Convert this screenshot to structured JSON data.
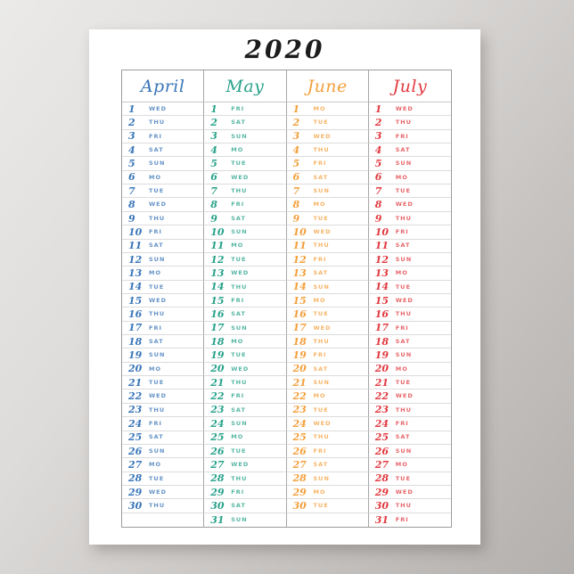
{
  "poster": {
    "title": "2020"
  },
  "colors": {
    "background_start": "#ebeae9",
    "background_end": "#b3b0ae",
    "poster_background": "#ffffff",
    "title_color": "#1c1c1c",
    "table_border": "#9c9c9c",
    "column_line": "#a6a6a6",
    "row_line": "#dcdcdc"
  },
  "calendar": {
    "row_count": 31,
    "columns": [
      {
        "name": "April",
        "color": "#3a76b8",
        "days": [
          {
            "d": "1",
            "w": "WED"
          },
          {
            "d": "2",
            "w": "THU"
          },
          {
            "d": "3",
            "w": "FRI"
          },
          {
            "d": "4",
            "w": "SAT"
          },
          {
            "d": "5",
            "w": "SUN"
          },
          {
            "d": "6",
            "w": "MO"
          },
          {
            "d": "7",
            "w": "TUE"
          },
          {
            "d": "8",
            "w": "WED"
          },
          {
            "d": "9",
            "w": "THU"
          },
          {
            "d": "10",
            "w": "FRI"
          },
          {
            "d": "11",
            "w": "SAT"
          },
          {
            "d": "12",
            "w": "SUN"
          },
          {
            "d": "13",
            "w": "MO"
          },
          {
            "d": "14",
            "w": "TUE"
          },
          {
            "d": "15",
            "w": "WED"
          },
          {
            "d": "16",
            "w": "THU"
          },
          {
            "d": "17",
            "w": "FRI"
          },
          {
            "d": "18",
            "w": "SAT"
          },
          {
            "d": "19",
            "w": "SUN"
          },
          {
            "d": "20",
            "w": "MO"
          },
          {
            "d": "21",
            "w": "TUE"
          },
          {
            "d": "22",
            "w": "WED"
          },
          {
            "d": "23",
            "w": "THU"
          },
          {
            "d": "24",
            "w": "FRI"
          },
          {
            "d": "25",
            "w": "SAT"
          },
          {
            "d": "26",
            "w": "SUN"
          },
          {
            "d": "27",
            "w": "MO"
          },
          {
            "d": "28",
            "w": "TUE"
          },
          {
            "d": "29",
            "w": "WED"
          },
          {
            "d": "30",
            "w": "THU"
          }
        ]
      },
      {
        "name": "May",
        "color": "#29a28b",
        "days": [
          {
            "d": "1",
            "w": "FRI"
          },
          {
            "d": "2",
            "w": "SAT"
          },
          {
            "d": "3",
            "w": "SUN"
          },
          {
            "d": "4",
            "w": "MO"
          },
          {
            "d": "5",
            "w": "TUE"
          },
          {
            "d": "6",
            "w": "WED"
          },
          {
            "d": "7",
            "w": "THU"
          },
          {
            "d": "8",
            "w": "FRI"
          },
          {
            "d": "9",
            "w": "SAT"
          },
          {
            "d": "10",
            "w": "SUN"
          },
          {
            "d": "11",
            "w": "MO"
          },
          {
            "d": "12",
            "w": "TUE"
          },
          {
            "d": "13",
            "w": "WED"
          },
          {
            "d": "14",
            "w": "THU"
          },
          {
            "d": "15",
            "w": "FRI"
          },
          {
            "d": "16",
            "w": "SAT"
          },
          {
            "d": "17",
            "w": "SUN"
          },
          {
            "d": "18",
            "w": "MO"
          },
          {
            "d": "19",
            "w": "TUE"
          },
          {
            "d": "20",
            "w": "WED"
          },
          {
            "d": "21",
            "w": "THU"
          },
          {
            "d": "22",
            "w": "FRI"
          },
          {
            "d": "23",
            "w": "SAT"
          },
          {
            "d": "24",
            "w": "SUN"
          },
          {
            "d": "25",
            "w": "MO"
          },
          {
            "d": "26",
            "w": "TUE"
          },
          {
            "d": "27",
            "w": "WED"
          },
          {
            "d": "28",
            "w": "THU"
          },
          {
            "d": "29",
            "w": "FRI"
          },
          {
            "d": "30",
            "w": "SAT"
          },
          {
            "d": "31",
            "w": "SUN"
          }
        ]
      },
      {
        "name": "June",
        "color": "#f3a03d",
        "days": [
          {
            "d": "1",
            "w": "MO"
          },
          {
            "d": "2",
            "w": "TUE"
          },
          {
            "d": "3",
            "w": "WED"
          },
          {
            "d": "4",
            "w": "THU"
          },
          {
            "d": "5",
            "w": "FRI"
          },
          {
            "d": "6",
            "w": "SAT"
          },
          {
            "d": "7",
            "w": "SUN"
          },
          {
            "d": "8",
            "w": "MO"
          },
          {
            "d": "9",
            "w": "TUE"
          },
          {
            "d": "10",
            "w": "WED"
          },
          {
            "d": "11",
            "w": "THU"
          },
          {
            "d": "12",
            "w": "FRI"
          },
          {
            "d": "13",
            "w": "SAT"
          },
          {
            "d": "14",
            "w": "SUN"
          },
          {
            "d": "15",
            "w": "MO"
          },
          {
            "d": "16",
            "w": "TUE"
          },
          {
            "d": "17",
            "w": "WED"
          },
          {
            "d": "18",
            "w": "THU"
          },
          {
            "d": "19",
            "w": "FRI"
          },
          {
            "d": "20",
            "w": "SAT"
          },
          {
            "d": "21",
            "w": "SUN"
          },
          {
            "d": "22",
            "w": "MO"
          },
          {
            "d": "23",
            "w": "TUE"
          },
          {
            "d": "24",
            "w": "WED"
          },
          {
            "d": "25",
            "w": "THU"
          },
          {
            "d": "26",
            "w": "FRI"
          },
          {
            "d": "27",
            "w": "SAT"
          },
          {
            "d": "28",
            "w": "SUN"
          },
          {
            "d": "29",
            "w": "MO"
          },
          {
            "d": "30",
            "w": "TUE"
          }
        ]
      },
      {
        "name": "July",
        "color": "#e13a40",
        "days": [
          {
            "d": "1",
            "w": "WED"
          },
          {
            "d": "2",
            "w": "THU"
          },
          {
            "d": "3",
            "w": "FRI"
          },
          {
            "d": "4",
            "w": "SAT"
          },
          {
            "d": "5",
            "w": "SUN"
          },
          {
            "d": "6",
            "w": "MO"
          },
          {
            "d": "7",
            "w": "TUE"
          },
          {
            "d": "8",
            "w": "WED"
          },
          {
            "d": "9",
            "w": "THU"
          },
          {
            "d": "10",
            "w": "FRI"
          },
          {
            "d": "11",
            "w": "SAT"
          },
          {
            "d": "12",
            "w": "SUN"
          },
          {
            "d": "13",
            "w": "MO"
          },
          {
            "d": "14",
            "w": "TUE"
          },
          {
            "d": "15",
            "w": "WED"
          },
          {
            "d": "16",
            "w": "THU"
          },
          {
            "d": "17",
            "w": "FRI"
          },
          {
            "d": "18",
            "w": "SAT"
          },
          {
            "d": "19",
            "w": "SUN"
          },
          {
            "d": "20",
            "w": "MO"
          },
          {
            "d": "21",
            "w": "TUE"
          },
          {
            "d": "22",
            "w": "WED"
          },
          {
            "d": "23",
            "w": "THU"
          },
          {
            "d": "24",
            "w": "FRI"
          },
          {
            "d": "25",
            "w": "SAT"
          },
          {
            "d": "26",
            "w": "SUN"
          },
          {
            "d": "27",
            "w": "MO"
          },
          {
            "d": "28",
            "w": "TUE"
          },
          {
            "d": "29",
            "w": "WED"
          },
          {
            "d": "30",
            "w": "THU"
          },
          {
            "d": "31",
            "w": "FRI"
          }
        ]
      }
    ]
  }
}
